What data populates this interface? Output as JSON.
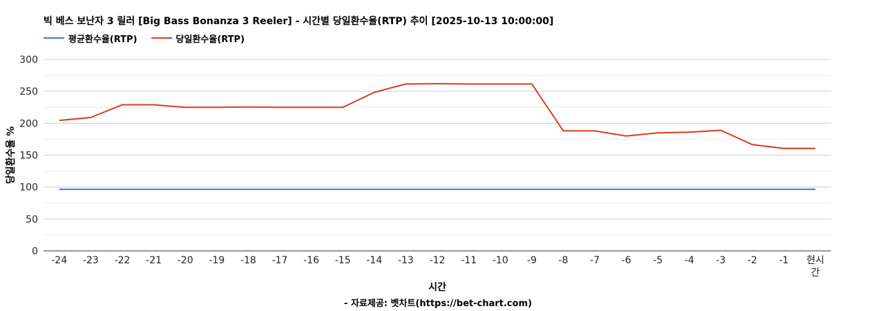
{
  "chart_data": {
    "type": "line",
    "title": "빅 베스 보난자 3 릴러 [Big Bass Bonanza 3 Reeler] - 시간별 당일환수율(RTP) 추이 [2025-10-13 10:00:00]",
    "xlabel": "시간",
    "ylabel": "당일환수율 %",
    "categories": [
      "-24",
      "-23",
      "-22",
      "-21",
      "-20",
      "-19",
      "-18",
      "-17",
      "-16",
      "-15",
      "-14",
      "-13",
      "-12",
      "-11",
      "-10",
      "-9",
      "-8",
      "-7",
      "-6",
      "-5",
      "-4",
      "-3",
      "-2",
      "-1",
      "현시간"
    ],
    "ylim": [
      0,
      300
    ],
    "yticks": [
      0,
      50,
      100,
      150,
      200,
      250,
      300
    ],
    "grid": true,
    "legend_position": "top-left",
    "series": [
      {
        "name": "평균환수율(RTP)",
        "color": "#3c78d8",
        "values": [
          96.5,
          96.5,
          96.5,
          96.5,
          96.5,
          96.5,
          96.5,
          96.5,
          96.5,
          96.5,
          96.5,
          96.5,
          96.5,
          96.5,
          96.5,
          96.5,
          96.5,
          96.5,
          96.5,
          96.5,
          96.5,
          96.5,
          96.5,
          96.5,
          96.5
        ]
      },
      {
        "name": "당일환수율(RTP)",
        "color": "#d73c1f",
        "values": [
          204.5,
          209,
          229,
          229,
          225,
          225,
          225.5,
          225,
          225,
          225,
          248.5,
          261.5,
          262,
          261.5,
          261.5,
          261.5,
          188,
          188,
          180,
          185,
          186,
          189,
          166.5,
          160.5,
          160.5
        ]
      }
    ],
    "source_note": "- 자료제공: 벳차트(https://bet-chart.com)"
  }
}
